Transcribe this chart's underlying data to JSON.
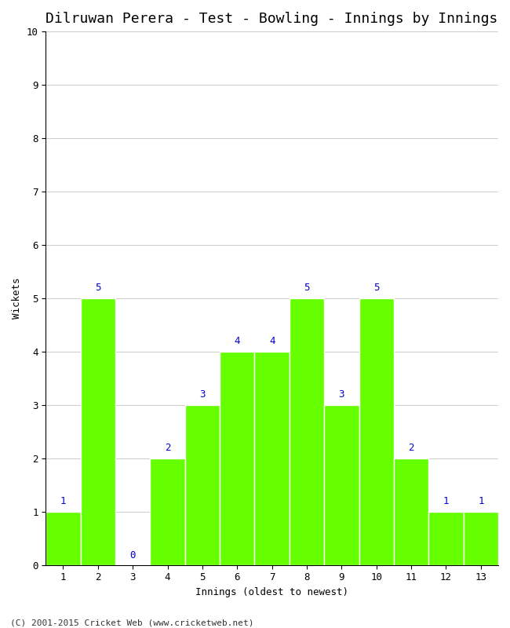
{
  "title": "Dilruwan Perera - Test - Bowling - Innings by Innings",
  "xlabel": "Innings (oldest to newest)",
  "ylabel": "Wickets",
  "categories": [
    1,
    2,
    3,
    4,
    5,
    6,
    7,
    8,
    9,
    10,
    11,
    12,
    13
  ],
  "values": [
    1,
    5,
    0,
    2,
    3,
    4,
    4,
    5,
    3,
    5,
    2,
    1,
    1
  ],
  "bar_color": "#66ff00",
  "bar_edge_color": "#ffffff",
  "label_color": "#0000cc",
  "ylim": [
    0,
    10
  ],
  "yticks": [
    0,
    1,
    2,
    3,
    4,
    5,
    6,
    7,
    8,
    9,
    10
  ],
  "grid_color": "#cccccc",
  "background_color": "#ffffff",
  "title_fontsize": 13,
  "axis_label_fontsize": 9,
  "tick_fontsize": 9,
  "label_fontsize": 9,
  "footer": "(C) 2001-2015 Cricket Web (www.cricketweb.net)"
}
